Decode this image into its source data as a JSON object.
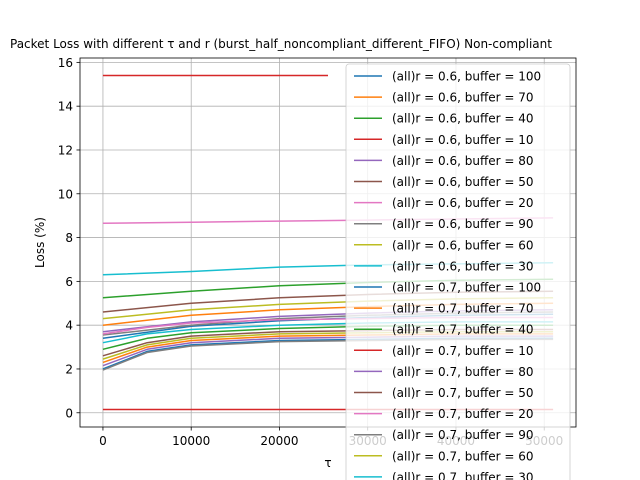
{
  "chart_data": {
    "type": "line",
    "title": "Packet Loss with different τ and r (burst_half_noncompliant_different_FIFO) Non-compliant",
    "xlabel": "τ",
    "ylabel": "Loss (%)",
    "xlim": [
      -2600,
      53600
    ],
    "ylim": [
      -0.65,
      16.2
    ],
    "xticks": [
      0,
      10000,
      20000,
      30000,
      40000,
      50000
    ],
    "yticks": [
      0,
      2,
      4,
      6,
      8,
      10,
      12,
      14,
      16
    ],
    "grid": true,
    "legend_position": "top-right",
    "series": [
      {
        "name": "(all)r = 0.6, buffer = 100",
        "color": "#1f77b4",
        "x": [
          0,
          10000,
          20000,
          30000,
          40000,
          51000
        ],
        "y": [
          3.4,
          3.95,
          4.2,
          4.35,
          4.45,
          4.5
        ]
      },
      {
        "name": "(all)r = 0.6, buffer = 70",
        "color": "#ff7f0e",
        "x": [
          0,
          10000,
          20000,
          30000,
          40000,
          51000
        ],
        "y": [
          4.0,
          4.45,
          4.7,
          4.85,
          4.95,
          5.0
        ]
      },
      {
        "name": "(all)r = 0.6, buffer = 40",
        "color": "#2ca02c",
        "x": [
          0,
          10000,
          20000,
          30000,
          40000,
          51000
        ],
        "y": [
          5.25,
          5.55,
          5.8,
          5.95,
          6.05,
          6.1
        ]
      },
      {
        "name": "(all)r = 0.6, buffer = 10",
        "color": "#d62728",
        "x": [
          0,
          10000,
          20000,
          25500
        ],
        "y": [
          15.4,
          15.4,
          15.4,
          15.4
        ]
      },
      {
        "name": "(all)r = 0.6, buffer = 80",
        "color": "#9467bd",
        "x": [
          0,
          10000,
          20000,
          30000,
          40000,
          51000
        ],
        "y": [
          3.7,
          4.15,
          4.4,
          4.55,
          4.65,
          4.7
        ]
      },
      {
        "name": "(all)r = 0.6, buffer = 50",
        "color": "#8c564b",
        "x": [
          0,
          10000,
          20000,
          30000,
          40000,
          51000
        ],
        "y": [
          4.6,
          5.0,
          5.25,
          5.4,
          5.5,
          5.55
        ]
      },
      {
        "name": "(all)r = 0.6, buffer = 20",
        "color": "#e377c2",
        "x": [
          0,
          10000,
          20000,
          30000,
          40000,
          51000
        ],
        "y": [
          8.65,
          8.7,
          8.75,
          8.8,
          8.85,
          8.9
        ]
      },
      {
        "name": "(all)r = 0.6, buffer = 90",
        "color": "#7f7f7f",
        "x": [
          0,
          10000,
          20000,
          30000,
          40000,
          51000
        ],
        "y": [
          3.55,
          4.0,
          4.3,
          4.45,
          4.55,
          4.6
        ]
      },
      {
        "name": "(all)r = 0.6, buffer = 60",
        "color": "#bcbd22",
        "x": [
          0,
          10000,
          20000,
          30000,
          40000,
          51000
        ],
        "y": [
          4.3,
          4.7,
          4.95,
          5.1,
          5.2,
          5.25
        ]
      },
      {
        "name": "(all)r = 0.6, buffer = 30",
        "color": "#17becf",
        "x": [
          0,
          10000,
          20000,
          30000,
          40000,
          51000
        ],
        "y": [
          6.3,
          6.45,
          6.65,
          6.75,
          6.8,
          6.85
        ]
      },
      {
        "name": "(all)r = 0.7, buffer = 100",
        "color": "#1f77b4",
        "x": [
          0,
          5000,
          10000,
          20000,
          30000,
          40000,
          51000
        ],
        "y": [
          2.0,
          2.8,
          3.1,
          3.3,
          3.35,
          3.4,
          3.4
        ]
      },
      {
        "name": "(all)r = 0.7, buffer = 70",
        "color": "#ff7f0e",
        "x": [
          0,
          5000,
          10000,
          20000,
          30000,
          40000,
          51000
        ],
        "y": [
          2.3,
          3.0,
          3.3,
          3.5,
          3.55,
          3.6,
          3.6
        ]
      },
      {
        "name": "(all)r = 0.7, buffer = 40",
        "color": "#2ca02c",
        "x": [
          0,
          5000,
          10000,
          20000,
          30000,
          40000,
          51000
        ],
        "y": [
          2.9,
          3.4,
          3.65,
          3.85,
          3.95,
          4.0,
          4.0
        ]
      },
      {
        "name": "(all)r = 0.7, buffer = 10",
        "color": "#d62728",
        "x": [
          0,
          10000,
          20000,
          30000,
          40000,
          51000
        ],
        "y": [
          0.15,
          0.15,
          0.15,
          0.15,
          0.15,
          0.15
        ]
      },
      {
        "name": "(all)r = 0.7, buffer = 80",
        "color": "#9467bd",
        "x": [
          0,
          5000,
          10000,
          20000,
          30000,
          40000,
          51000
        ],
        "y": [
          2.15,
          2.9,
          3.2,
          3.4,
          3.45,
          3.5,
          3.5
        ]
      },
      {
        "name": "(all)r = 0.7, buffer = 50",
        "color": "#8c564b",
        "x": [
          0,
          5000,
          10000,
          20000,
          30000,
          40000,
          51000
        ],
        "y": [
          2.6,
          3.2,
          3.5,
          3.7,
          3.75,
          3.8,
          3.8
        ]
      },
      {
        "name": "(all)r = 0.7, buffer = 20",
        "color": "#e377c2",
        "x": [
          0,
          5000,
          10000,
          20000,
          30000,
          40000,
          51000
        ],
        "y": [
          3.6,
          3.9,
          4.1,
          4.25,
          4.3,
          4.35,
          4.35
        ]
      },
      {
        "name": "(all)r = 0.7, buffer = 90",
        "color": "#7f7f7f",
        "x": [
          0,
          5000,
          10000,
          20000,
          30000,
          40000,
          51000
        ],
        "y": [
          1.95,
          2.75,
          3.05,
          3.25,
          3.3,
          3.35,
          3.35
        ]
      },
      {
        "name": "(all)r = 0.7, buffer = 60",
        "color": "#bcbd22",
        "x": [
          0,
          5000,
          10000,
          20000,
          30000,
          40000,
          51000
        ],
        "y": [
          2.45,
          3.1,
          3.4,
          3.6,
          3.65,
          3.7,
          3.7
        ]
      },
      {
        "name": "(all)r = 0.7, buffer = 30",
        "color": "#17becf",
        "x": [
          0,
          5000,
          10000,
          20000,
          30000,
          40000,
          51000
        ],
        "y": [
          3.2,
          3.6,
          3.8,
          4.0,
          4.1,
          4.15,
          4.15
        ]
      }
    ]
  }
}
